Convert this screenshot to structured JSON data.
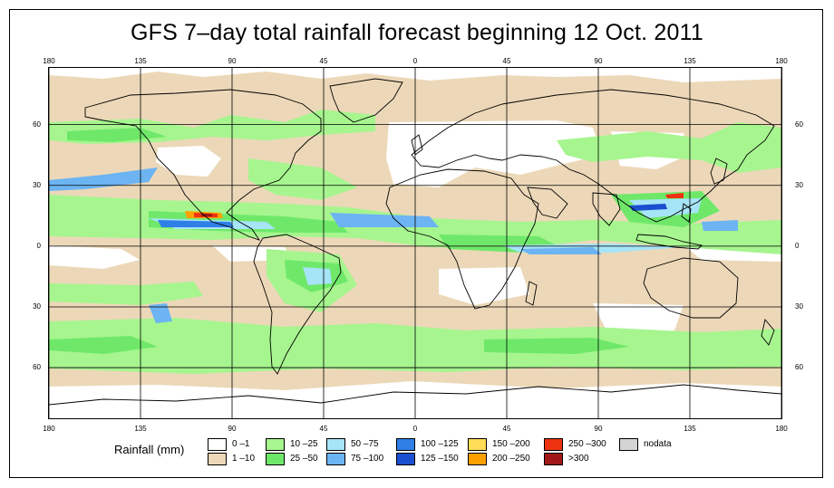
{
  "title": "GFS 7–day total rainfall forecast beginning 12 Oct. 2011",
  "map": {
    "projection": "equirectangular",
    "lon_labels": [
      "180",
      "135",
      "90",
      "45",
      "0",
      "45",
      "90",
      "135",
      "180"
    ],
    "lat_labels": [
      "60",
      "30",
      "0",
      "30",
      "60"
    ],
    "lon_values": [
      -180,
      -135,
      -90,
      -45,
      0,
      45,
      90,
      135,
      180
    ],
    "lat_values": [
      60,
      30,
      0,
      -30,
      -60
    ],
    "lat_range": [
      -85,
      88
    ],
    "graticule": "on"
  },
  "legend": {
    "title": "Rainfall (mm)",
    "items": [
      {
        "label": "0 –1",
        "color": "#ffffff"
      },
      {
        "label": "1 –10",
        "color": "#ecd8b8"
      },
      {
        "label": "10 –25",
        "color": "#a6f58f"
      },
      {
        "label": "25 –50",
        "color": "#6fe86a"
      },
      {
        "label": "50 –75",
        "color": "#a6e4f7"
      },
      {
        "label": "75 –100",
        "color": "#6cb4f2"
      },
      {
        "label": "100 –125",
        "color": "#2f7fe6"
      },
      {
        "label": "125 –150",
        "color": "#1a4fcf"
      },
      {
        "label": "150 –200",
        "color": "#ffdd55"
      },
      {
        "label": "200 –250",
        "color": "#ffa000"
      },
      {
        "label": "250 –300",
        "color": "#ee3311"
      },
      {
        "label": ">300",
        "color": "#a01818"
      },
      {
        "label": "nodata",
        "color": "#d4d4d4"
      }
    ]
  }
}
